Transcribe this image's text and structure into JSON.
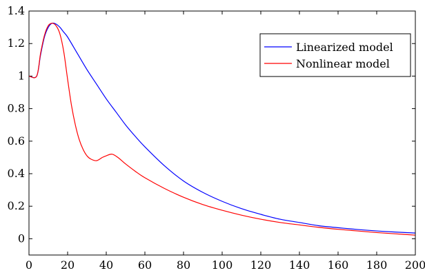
{
  "chart_data": {
    "type": "line",
    "title": "",
    "xlabel": "",
    "ylabel": "",
    "xlim": [
      0,
      200
    ],
    "ylim": [
      -0.1,
      1.4
    ],
    "x_ticks": [
      0,
      20,
      40,
      60,
      80,
      100,
      120,
      140,
      160,
      180,
      200
    ],
    "x_tick_labels": [
      "0",
      "20",
      "40",
      "60",
      "80",
      "100",
      "120",
      "140",
      "160",
      "180",
      "200"
    ],
    "y_ticks": [
      0,
      0.2,
      0.4,
      0.6,
      0.8,
      1,
      1.2,
      1.4
    ],
    "y_tick_labels": [
      "0",
      "0.2",
      "0.4",
      "0.6",
      "0.8",
      "1",
      "1.2",
      "1.4"
    ],
    "grid": false,
    "legend_position": "top-right",
    "series": [
      {
        "name": "Linearized model",
        "color": "#0000ff",
        "x": [
          0,
          4,
          6,
          8,
          10,
          12,
          14,
          16,
          18,
          20,
          25,
          30,
          35,
          40,
          45,
          50,
          55,
          60,
          70,
          80,
          90,
          100,
          110,
          120,
          130,
          140,
          150,
          160,
          170,
          180,
          190,
          200
        ],
        "y": [
          1,
          1,
          1.13,
          1.24,
          1.3,
          1.325,
          1.32,
          1.3,
          1.27,
          1.24,
          1.14,
          1.04,
          0.95,
          0.86,
          0.78,
          0.7,
          0.63,
          0.565,
          0.45,
          0.355,
          0.285,
          0.23,
          0.185,
          0.15,
          0.12,
          0.1,
          0.08,
          0.068,
          0.057,
          0.048,
          0.041,
          0.035
        ]
      },
      {
        "name": "Nonlinear model",
        "color": "#ff0000",
        "x": [
          0,
          4,
          6,
          8,
          10,
          12,
          14,
          16,
          18,
          20,
          22,
          24,
          26,
          28,
          30,
          32,
          35,
          38,
          40,
          43,
          46,
          50,
          55,
          60,
          70,
          80,
          90,
          100,
          110,
          120,
          130,
          140,
          150,
          160,
          170,
          180,
          190,
          200
        ],
        "y": [
          1,
          1,
          1.14,
          1.25,
          1.31,
          1.325,
          1.31,
          1.26,
          1.15,
          0.98,
          0.82,
          0.7,
          0.61,
          0.55,
          0.51,
          0.49,
          0.48,
          0.5,
          0.51,
          0.52,
          0.5,
          0.46,
          0.415,
          0.375,
          0.31,
          0.255,
          0.21,
          0.175,
          0.145,
          0.12,
          0.1,
          0.085,
          0.07,
          0.058,
          0.048,
          0.038,
          0.03,
          0.022
        ]
      }
    ]
  }
}
